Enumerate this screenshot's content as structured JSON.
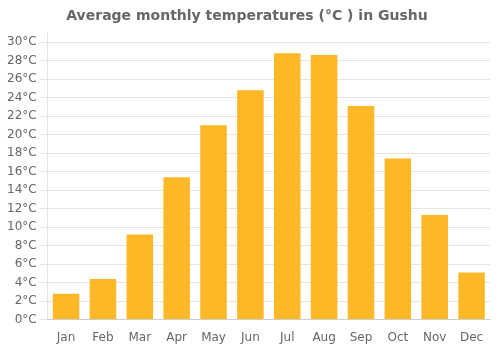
{
  "chart_data": {
    "type": "bar",
    "title": "Average monthly temperatures (°C ) in Gushu",
    "categories": [
      "Jan",
      "Feb",
      "Mar",
      "Apr",
      "May",
      "Jun",
      "Jul",
      "Aug",
      "Sep",
      "Oct",
      "Nov",
      "Dec"
    ],
    "values": [
      2.8,
      4.4,
      9.2,
      15.4,
      21.0,
      24.8,
      28.8,
      28.6,
      23.1,
      17.4,
      11.3,
      5.1
    ],
    "color": "#FDB827",
    "ylim": [
      0,
      31
    ],
    "yticks": [
      {
        "value": 0,
        "label": "0°C"
      },
      {
        "value": 2,
        "label": "2°C"
      },
      {
        "value": 4,
        "label": "4°C"
      },
      {
        "value": 6,
        "label": "6°C"
      },
      {
        "value": 8,
        "label": "8°C"
      },
      {
        "value": 10,
        "label": "10°C"
      },
      {
        "value": 12,
        "label": "12°C"
      },
      {
        "value": 14,
        "label": "14°C"
      },
      {
        "value": 16,
        "label": "16°C"
      },
      {
        "value": 18,
        "label": "18°C"
      },
      {
        "value": 20,
        "label": "20°C"
      },
      {
        "value": 22,
        "label": "22°C"
      },
      {
        "value": 24,
        "label": "24°C"
      },
      {
        "value": 26,
        "label": "26°C"
      },
      {
        "value": 28,
        "label": "28°C"
      },
      {
        "value": 30,
        "label": "30°C"
      }
    ],
    "grid": true
  }
}
